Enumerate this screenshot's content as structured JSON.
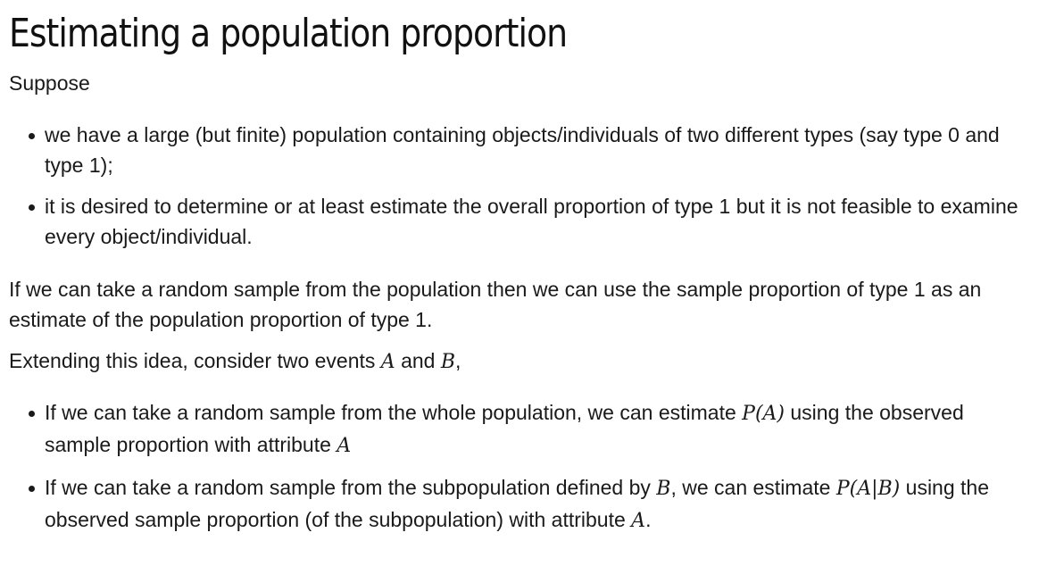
{
  "title": "Estimating a population proportion",
  "intro": "Suppose",
  "list1": [
    "we have a large (but finite) population containing objects/individuals of two different types (say type 0 and type 1);",
    "it is desired to determine or at least estimate the overall proportion of type 1 but it is not feasible to examine every object/individual."
  ],
  "para2": "If we can take a random sample from the population then we can use the sample proportion of type 1 as an estimate of the population proportion of type 1.",
  "para3": {
    "before": "Extending this idea, consider two events ",
    "event_a": "A",
    "middle": " and ",
    "event_b": "B",
    "after": ","
  },
  "list2": [
    {
      "before": "If we can take a random sample from the whole population, we can estimate ",
      "math": "P(A)",
      "middle": " using the observed sample proportion with attribute ",
      "math2": "A",
      "after": ""
    },
    {
      "before": "If we can take a random sample from the subpopulation defined by ",
      "math": "B",
      "middle": ", we can estimate ",
      "math2": "P(A|B)",
      "after_a": " using the observed sample proportion (of the subpopulation) with attribute ",
      "math3": "A",
      "after": "."
    }
  ]
}
